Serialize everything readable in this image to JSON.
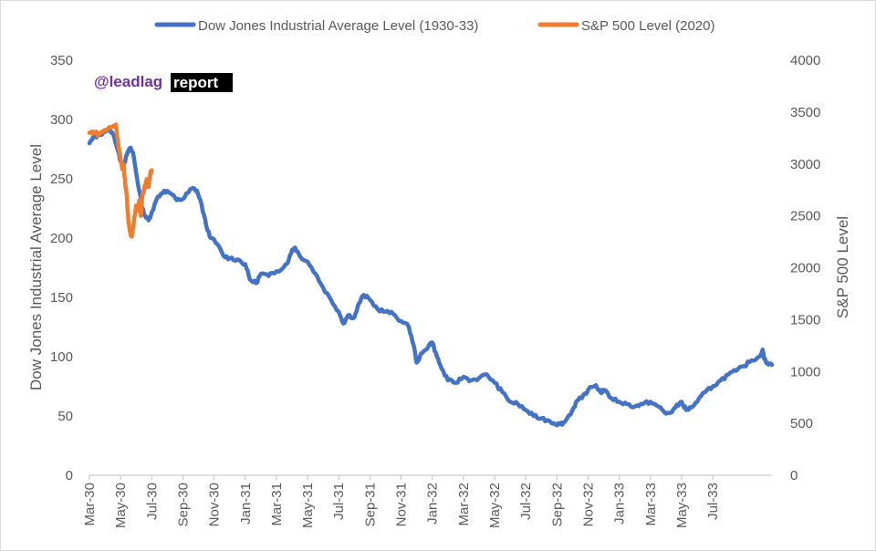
{
  "watermark": {
    "handle": "@leadlag",
    "word": "report",
    "handle_color": "#7030a0",
    "word_bg": "#000000",
    "word_color": "#ffffff"
  },
  "chart_data": {
    "type": "line",
    "title": "",
    "legend_position": "top",
    "grid": false,
    "xlabel": "",
    "ylabel_left": "Dow Jones Industrial Average Level",
    "ylabel_right": "S&P 500 Level",
    "ylim_left": [
      0,
      350
    ],
    "ylim_right": [
      0,
      4000
    ],
    "left_ticks": [
      "0",
      "50",
      "100",
      "150",
      "200",
      "250",
      "300",
      "350"
    ],
    "right_ticks": [
      "0",
      "500",
      "1000",
      "1500",
      "2000",
      "2500",
      "3000",
      "3500",
      "4000"
    ],
    "x_ticks": [
      "Mar-30",
      "May-30",
      "Jul-30",
      "Sep-30",
      "Nov-30",
      "Jan-31",
      "Mar-31",
      "May-31",
      "Jul-31",
      "Sep-31",
      "Nov-31",
      "Jan-32",
      "Mar-32",
      "May-32",
      "Jul-32",
      "Sep-32",
      "Nov-32",
      "Jan-33",
      "Mar-33",
      "May-33",
      "Jul-33"
    ],
    "x_range_months": [
      0,
      39.8
    ],
    "series": [
      {
        "name": "Dow Jones Industrial Average Level (1930-33)",
        "axis": "left",
        "color": "#4472c4",
        "points": [
          [
            0,
            280
          ],
          [
            0.3,
            285
          ],
          [
            0.6,
            287
          ],
          [
            1.0,
            290
          ],
          [
            1.3,
            292
          ],
          [
            1.6,
            285
          ],
          [
            1.8,
            275
          ],
          [
            2.0,
            265
          ],
          [
            2.2,
            262
          ],
          [
            2.4,
            270
          ],
          [
            2.6,
            276
          ],
          [
            2.8,
            272
          ],
          [
            3.0,
            255
          ],
          [
            3.2,
            240
          ],
          [
            3.4,
            225
          ],
          [
            3.6,
            218
          ],
          [
            3.8,
            215
          ],
          [
            4.0,
            222
          ],
          [
            4.4,
            235
          ],
          [
            4.8,
            240
          ],
          [
            5.2,
            238
          ],
          [
            5.6,
            232
          ],
          [
            6.0,
            233
          ],
          [
            6.3,
            238
          ],
          [
            6.6,
            242
          ],
          [
            6.9,
            240
          ],
          [
            7.2,
            228
          ],
          [
            7.5,
            210
          ],
          [
            7.8,
            200
          ],
          [
            8.2,
            195
          ],
          [
            8.6,
            185
          ],
          [
            9.0,
            183
          ],
          [
            9.5,
            182
          ],
          [
            10.0,
            178
          ],
          [
            10.3,
            165
          ],
          [
            10.7,
            162
          ],
          [
            11.0,
            170
          ],
          [
            11.5,
            168
          ],
          [
            12.0,
            172
          ],
          [
            12.5,
            176
          ],
          [
            12.8,
            182
          ],
          [
            13.0,
            190
          ],
          [
            13.2,
            192
          ],
          [
            13.5,
            185
          ],
          [
            14.0,
            180
          ],
          [
            14.5,
            170
          ],
          [
            15.0,
            158
          ],
          [
            15.5,
            148
          ],
          [
            16.0,
            138
          ],
          [
            16.3,
            128
          ],
          [
            16.6,
            135
          ],
          [
            17.0,
            133
          ],
          [
            17.3,
            145
          ],
          [
            17.6,
            152
          ],
          [
            18.0,
            148
          ],
          [
            18.5,
            140
          ],
          [
            19.0,
            138
          ],
          [
            19.5,
            136
          ],
          [
            20.0,
            130
          ],
          [
            20.5,
            125
          ],
          [
            20.8,
            110
          ],
          [
            21.0,
            95
          ],
          [
            21.2,
            100
          ],
          [
            21.5,
            105
          ],
          [
            21.8,
            110
          ],
          [
            22.0,
            112
          ],
          [
            22.3,
            100
          ],
          [
            22.6,
            90
          ],
          [
            23.0,
            80
          ],
          [
            23.5,
            78
          ],
          [
            24.0,
            83
          ],
          [
            24.5,
            80
          ],
          [
            25.0,
            82
          ],
          [
            25.5,
            85
          ],
          [
            26.0,
            78
          ],
          [
            26.5,
            70
          ],
          [
            27.0,
            62
          ],
          [
            27.5,
            60
          ],
          [
            28.0,
            55
          ],
          [
            28.5,
            50
          ],
          [
            29.0,
            48
          ],
          [
            29.5,
            46
          ],
          [
            29.8,
            44
          ],
          [
            30.2,
            43
          ],
          [
            30.5,
            45
          ],
          [
            31.0,
            55
          ],
          [
            31.3,
            63
          ],
          [
            31.6,
            65
          ],
          [
            32.0,
            72
          ],
          [
            32.5,
            76
          ],
          [
            32.8,
            70
          ],
          [
            33.0,
            72
          ],
          [
            33.5,
            65
          ],
          [
            34.0,
            62
          ],
          [
            34.5,
            60
          ],
          [
            35.0,
            58
          ],
          [
            35.5,
            60
          ],
          [
            36.0,
            62
          ],
          [
            36.5,
            58
          ],
          [
            37.0,
            52
          ],
          [
            37.3,
            53
          ],
          [
            37.6,
            57
          ],
          [
            38.0,
            62
          ],
          [
            38.3,
            55
          ],
          [
            38.6,
            57
          ],
          [
            39.0,
            62
          ],
          [
            39.5,
            70
          ],
          [
            40.0,
            75
          ],
          [
            40.5,
            80
          ],
          [
            41.0,
            85
          ],
          [
            41.5,
            88
          ],
          [
            42.0,
            92
          ],
          [
            42.5,
            97
          ],
          [
            43.0,
            100
          ],
          [
            43.2,
            106
          ],
          [
            43.3,
            98
          ],
          [
            43.5,
            95
          ],
          [
            43.8,
            93
          ]
        ]
      },
      {
        "name": "S&P 500 Level (2020)",
        "axis": "right",
        "color": "#ed7d31",
        "points": [
          [
            0,
            3300
          ],
          [
            0.3,
            3310
          ],
          [
            0.6,
            3280
          ],
          [
            0.9,
            3320
          ],
          [
            1.2,
            3340
          ],
          [
            1.5,
            3360
          ],
          [
            1.7,
            3380
          ],
          [
            1.8,
            3250
          ],
          [
            1.9,
            3150
          ],
          [
            2.0,
            3050
          ],
          [
            2.1,
            2950
          ],
          [
            2.2,
            3000
          ],
          [
            2.3,
            2800
          ],
          [
            2.4,
            2700
          ],
          [
            2.5,
            2450
          ],
          [
            2.6,
            2350
          ],
          [
            2.7,
            2300
          ],
          [
            2.8,
            2380
          ],
          [
            2.9,
            2500
          ],
          [
            3.0,
            2600
          ],
          [
            3.1,
            2550
          ],
          [
            3.2,
            2650
          ],
          [
            3.3,
            2500
          ],
          [
            3.4,
            2700
          ],
          [
            3.5,
            2750
          ],
          [
            3.6,
            2800
          ],
          [
            3.7,
            2850
          ],
          [
            3.8,
            2780
          ],
          [
            3.9,
            2900
          ],
          [
            4.0,
            2940
          ]
        ]
      }
    ]
  }
}
